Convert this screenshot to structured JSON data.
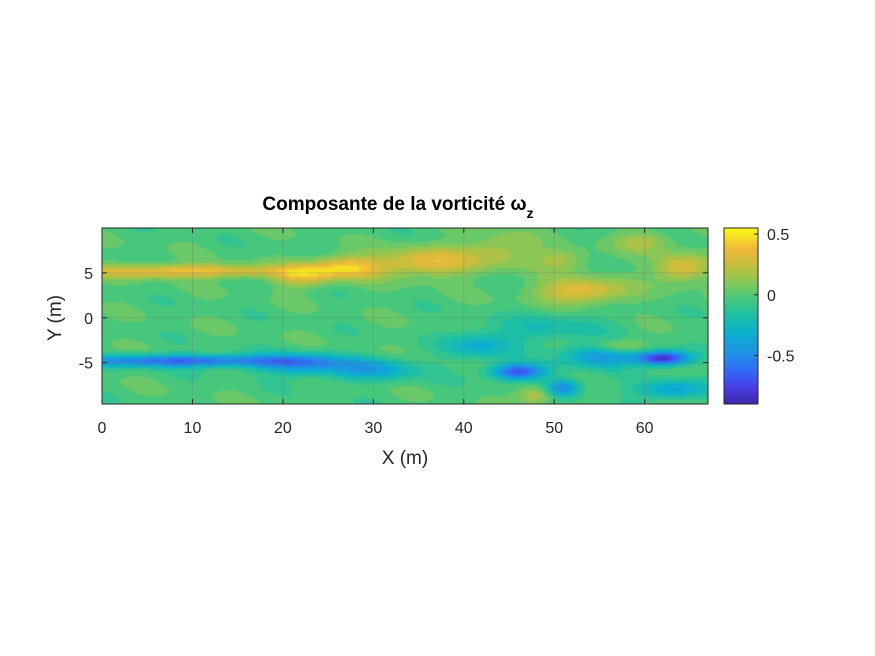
{
  "chart_data": {
    "type": "heatmap",
    "title": "Composante de la vorticité ω",
    "title_subscript": "z",
    "xlabel": "X (m)",
    "ylabel": "Y (m)",
    "xlim": [
      0,
      67
    ],
    "ylim": [
      -9.6,
      10
    ],
    "xticks": [
      0,
      10,
      20,
      30,
      40,
      50,
      60
    ],
    "xtick_labels": [
      "0",
      "10",
      "20",
      "30",
      "40",
      "50",
      "60"
    ],
    "yticks": [
      -5,
      0,
      5
    ],
    "ytick_labels": [
      "-5",
      "0",
      "5"
    ],
    "grid": true,
    "colormap": "parula",
    "colorbar": {
      "range": [
        -0.9,
        0.55
      ],
      "ticks": [
        0.5,
        0,
        -0.5
      ],
      "tick_labels": [
        "0.5",
        "0",
        "-0.5"
      ],
      "placement": "right"
    },
    "features": [
      {
        "kind": "positive band",
        "y": 5.2,
        "x_from": 0,
        "x_to": 20,
        "value": 0.42
      },
      {
        "kind": "positive blob",
        "x": 27,
        "y": 5.5,
        "value": 0.45
      },
      {
        "kind": "positive blob",
        "x": 37,
        "y": 6.0,
        "value": 0.38
      },
      {
        "kind": "positive blob",
        "x": 53,
        "y": 3.0,
        "value": 0.4
      },
      {
        "kind": "positive blob",
        "x": 64,
        "y": 5.5,
        "value": 0.38
      },
      {
        "kind": "negative band",
        "y": -4.8,
        "x_from": 0,
        "x_to": 20,
        "value": -0.62
      },
      {
        "kind": "negative blob",
        "x": 46,
        "y": -6.0,
        "value": -0.7
      },
      {
        "kind": "negative blob",
        "x": 62,
        "y": -4.5,
        "value": -0.85
      }
    ]
  }
}
